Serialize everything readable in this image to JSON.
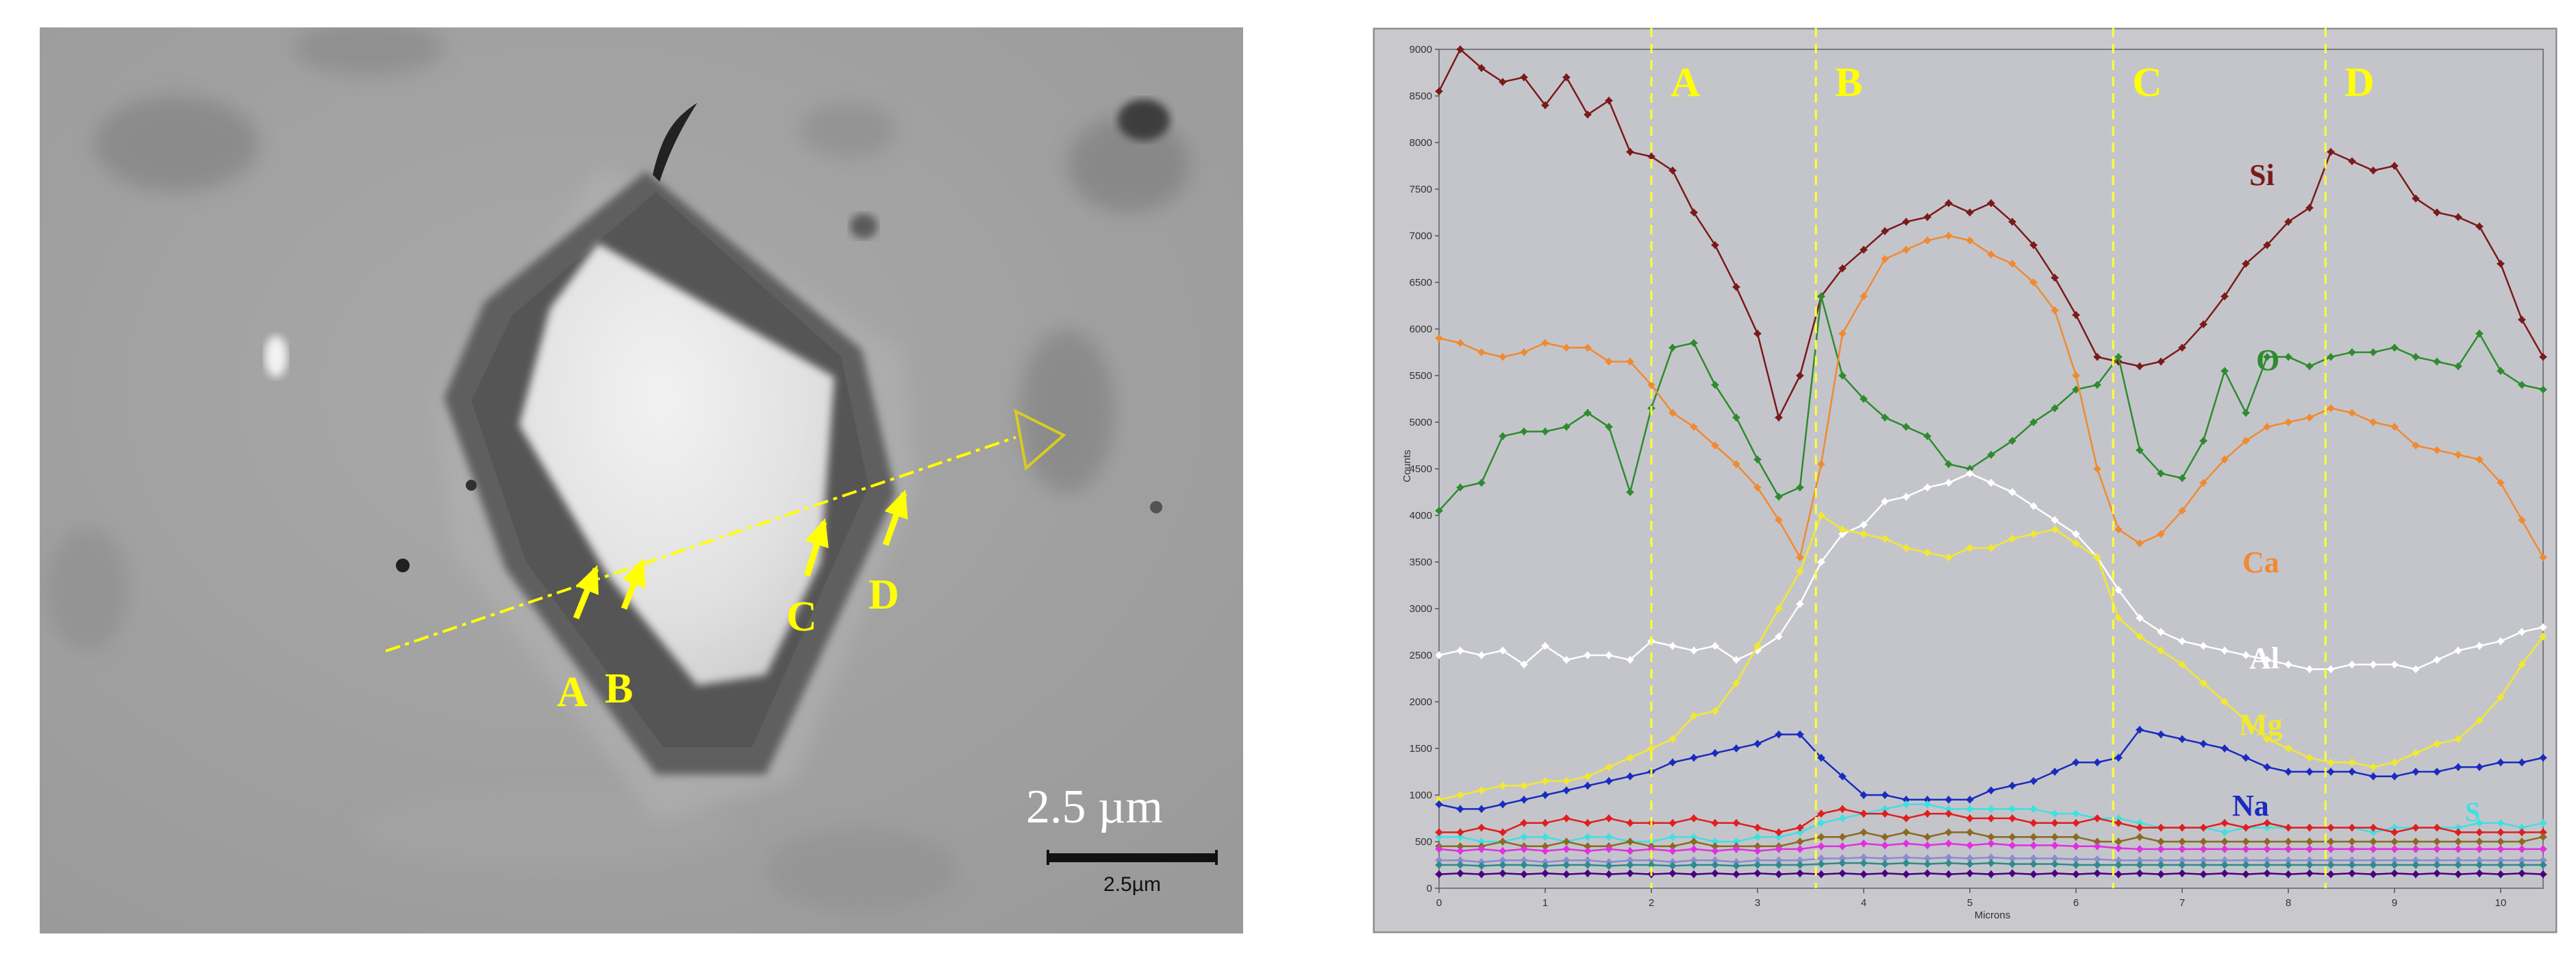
{
  "sem_image": {
    "markers": [
      {
        "label": "A",
        "color": "#ffff00"
      },
      {
        "label": "B",
        "color": "#ffff00"
      },
      {
        "label": "C",
        "color": "#ffff00"
      },
      {
        "label": "D",
        "color": "#ffff00"
      }
    ],
    "scale_text": "2.5 µm",
    "scalebar_label": "2.5µm"
  },
  "chart_data": {
    "type": "line",
    "title": "",
    "xlabel": "Microns",
    "ylabel": "Counts",
    "xlim": [
      0,
      10.4
    ],
    "ylim": [
      0,
      9000
    ],
    "xticks": [
      0,
      1,
      2,
      3,
      4,
      5,
      6,
      7,
      8,
      9,
      10
    ],
    "yticks": [
      0,
      500,
      1000,
      1500,
      2000,
      2500,
      3000,
      3500,
      4000,
      4500,
      5000,
      5500,
      6000,
      6500,
      7000,
      7500,
      8000,
      8500,
      9000
    ],
    "x": [
      0,
      0.2,
      0.4,
      0.6,
      0.8,
      1.0,
      1.2,
      1.4,
      1.6,
      1.8,
      2.0,
      2.2,
      2.4,
      2.6,
      2.8,
      3.0,
      3.2,
      3.4,
      3.6,
      3.8,
      4.0,
      4.2,
      4.4,
      4.6,
      4.8,
      5.0,
      5.2,
      5.4,
      5.6,
      5.8,
      6.0,
      6.2,
      6.4,
      6.6,
      6.8,
      7.0,
      7.2,
      7.4,
      7.6,
      7.8,
      8.0,
      8.2,
      8.4,
      8.6,
      8.8,
      9.0,
      9.2,
      9.4,
      9.6,
      9.8,
      10.0,
      10.2,
      10.4
    ],
    "boundaries": [
      {
        "label": "A",
        "x": 2.0
      },
      {
        "label": "B",
        "x": 3.55
      },
      {
        "label": "C",
        "x": 6.35
      },
      {
        "label": "D",
        "x": 8.35
      }
    ],
    "series": [
      {
        "name": "Si",
        "color": "#7b1a1a",
        "values": [
          8550,
          9000,
          8800,
          8650,
          8700,
          8400,
          8700,
          8300,
          8450,
          7900,
          7850,
          7700,
          7250,
          6900,
          6450,
          5950,
          5050,
          5500,
          6350,
          6650,
          6850,
          7050,
          7150,
          7200,
          7350,
          7250,
          7350,
          7150,
          6900,
          6550,
          6150,
          5700,
          5650,
          5600,
          5650,
          5800,
          6050,
          6350,
          6700,
          6900,
          7150,
          7300,
          7900,
          7800,
          7700,
          7750,
          7400,
          7250,
          7200,
          7100,
          6700,
          6100,
          5700
        ]
      },
      {
        "name": "O",
        "color": "#2e8b2e",
        "values": [
          4050,
          4300,
          4350,
          4850,
          4900,
          4900,
          4950,
          5100,
          4950,
          4250,
          5150,
          5800,
          5850,
          5400,
          5050,
          4600,
          4200,
          4300,
          6350,
          5500,
          5250,
          5050,
          4950,
          4850,
          4550,
          4500,
          4650,
          4800,
          5000,
          5150,
          5350,
          5400,
          5700,
          4700,
          4450,
          4400,
          4800,
          5550,
          5100,
          5700,
          5700,
          5600,
          5700,
          5750,
          5750,
          5800,
          5700,
          5650,
          5600,
          5950,
          5550,
          5400,
          5350
        ]
      },
      {
        "name": "Ca",
        "color": "#f08a30",
        "values": [
          5900,
          5850,
          5750,
          5700,
          5750,
          5850,
          5800,
          5800,
          5650,
          5650,
          5400,
          5100,
          4950,
          4750,
          4550,
          4300,
          3950,
          3550,
          4550,
          5950,
          6350,
          6750,
          6850,
          6950,
          7000,
          6950,
          6800,
          6700,
          6500,
          6200,
          5500,
          4500,
          3850,
          3700,
          3800,
          4050,
          4350,
          4600,
          4800,
          4950,
          5000,
          5050,
          5150,
          5100,
          5000,
          4950,
          4750,
          4700,
          4650,
          4600,
          4350,
          3950,
          3550
        ]
      },
      {
        "name": "Al",
        "color": "#ffffff",
        "values": [
          2500,
          2550,
          2500,
          2550,
          2400,
          2600,
          2450,
          2500,
          2500,
          2450,
          2650,
          2600,
          2550,
          2600,
          2450,
          2550,
          2700,
          3050,
          3500,
          3800,
          3900,
          4150,
          4200,
          4300,
          4350,
          4450,
          4350,
          4250,
          4100,
          3950,
          3800,
          3550,
          3200,
          2900,
          2750,
          2650,
          2600,
          2550,
          2500,
          2450,
          2400,
          2350,
          2350,
          2400,
          2400,
          2400,
          2350,
          2450,
          2550,
          2600,
          2650,
          2750,
          2800
        ]
      },
      {
        "name": "Mg",
        "color": "#f2e830",
        "values": [
          950,
          1000,
          1050,
          1100,
          1100,
          1150,
          1150,
          1200,
          1300,
          1400,
          1500,
          1600,
          1850,
          1900,
          2200,
          2600,
          3000,
          3400,
          4000,
          3850,
          3800,
          3750,
          3650,
          3600,
          3550,
          3650,
          3650,
          3750,
          3800,
          3850,
          3700,
          3550,
          2900,
          2700,
          2550,
          2400,
          2200,
          2000,
          1800,
          1600,
          1500,
          1400,
          1350,
          1350,
          1300,
          1350,
          1450,
          1550,
          1600,
          1800,
          2050,
          2400,
          2700
        ]
      },
      {
        "name": "Na",
        "color": "#1a2bbf",
        "values": [
          900,
          850,
          850,
          900,
          950,
          1000,
          1050,
          1100,
          1150,
          1200,
          1250,
          1350,
          1400,
          1450,
          1500,
          1550,
          1650,
          1650,
          1400,
          1200,
          1000,
          1000,
          950,
          950,
          950,
          950,
          1050,
          1100,
          1150,
          1250,
          1350,
          1350,
          1400,
          1700,
          1650,
          1600,
          1550,
          1500,
          1400,
          1300,
          1250,
          1250,
          1250,
          1250,
          1200,
          1200,
          1250,
          1250,
          1300,
          1300,
          1350,
          1350,
          1400
        ]
      },
      {
        "name": "S",
        "color": "#40e0e0",
        "values": [
          550,
          550,
          500,
          500,
          550,
          550,
          500,
          550,
          550,
          500,
          500,
          550,
          550,
          500,
          500,
          550,
          550,
          600,
          700,
          750,
          800,
          850,
          900,
          900,
          850,
          850,
          850,
          850,
          850,
          800,
          800,
          750,
          750,
          700,
          650,
          650,
          650,
          600,
          650,
          650,
          650,
          650,
          650,
          650,
          600,
          650,
          650,
          650,
          650,
          700,
          700,
          650,
          700
        ]
      },
      {
        "name": "",
        "color": "#e01e1e",
        "values": [
          600,
          600,
          650,
          600,
          700,
          700,
          750,
          700,
          750,
          700,
          700,
          700,
          750,
          700,
          700,
          650,
          600,
          650,
          800,
          850,
          800,
          800,
          750,
          800,
          800,
          750,
          750,
          750,
          700,
          700,
          700,
          750,
          700,
          650,
          650,
          650,
          650,
          700,
          650,
          700,
          650,
          650,
          650,
          650,
          650,
          600,
          650,
          650,
          600,
          600,
          600,
          600,
          600
        ]
      },
      {
        "name": "",
        "color": "#8b6a20",
        "values": [
          450,
          450,
          450,
          500,
          450,
          450,
          500,
          450,
          450,
          500,
          450,
          450,
          500,
          450,
          450,
          450,
          450,
          500,
          550,
          550,
          600,
          550,
          600,
          550,
          600,
          600,
          550,
          550,
          550,
          550,
          550,
          500,
          500,
          550,
          500,
          500,
          500,
          500,
          500,
          500,
          500,
          500,
          500,
          500,
          500,
          500,
          500,
          500,
          500,
          500,
          500,
          500,
          550
        ]
      },
      {
        "name": "",
        "color": "#e030e0",
        "values": [
          420,
          400,
          420,
          400,
          420,
          400,
          420,
          400,
          420,
          400,
          420,
          400,
          420,
          400,
          420,
          400,
          420,
          420,
          450,
          450,
          480,
          460,
          480,
          460,
          480,
          460,
          480,
          460,
          460,
          460,
          450,
          450,
          430,
          420,
          420,
          420,
          420,
          420,
          420,
          420,
          420,
          420,
          420,
          420,
          420,
          420,
          420,
          420,
          420,
          420,
          420,
          420,
          420
        ]
      },
      {
        "name": "",
        "color": "#8b8bd0",
        "values": [
          300,
          300,
          280,
          300,
          300,
          280,
          300,
          300,
          280,
          300,
          300,
          280,
          300,
          300,
          280,
          300,
          300,
          300,
          320,
          320,
          330,
          320,
          330,
          320,
          330,
          320,
          330,
          320,
          320,
          320,
          310,
          310,
          300,
          300,
          300,
          300,
          300,
          300,
          300,
          300,
          300,
          300,
          300,
          300,
          300,
          300,
          300,
          300,
          300,
          300,
          300,
          300,
          300
        ]
      },
      {
        "name": "",
        "color": "#2e8b8b",
        "values": [
          250,
          250,
          240,
          250,
          250,
          240,
          250,
          250,
          240,
          250,
          250,
          240,
          250,
          250,
          240,
          250,
          250,
          250,
          260,
          270,
          270,
          260,
          270,
          260,
          270,
          260,
          270,
          260,
          260,
          260,
          250,
          250,
          250,
          250,
          250,
          250,
          250,
          250,
          250,
          250,
          250,
          250,
          250,
          250,
          250,
          250,
          250,
          250,
          250,
          250,
          250,
          250,
          250
        ]
      },
      {
        "name": "",
        "color": "#4b0082",
        "values": [
          150,
          160,
          150,
          160,
          150,
          160,
          150,
          160,
          150,
          160,
          150,
          160,
          150,
          160,
          150,
          160,
          150,
          160,
          150,
          160,
          150,
          160,
          150,
          160,
          150,
          160,
          150,
          160,
          150,
          160,
          150,
          160,
          150,
          160,
          150,
          160,
          150,
          160,
          150,
          160,
          150,
          160,
          150,
          160,
          150,
          160,
          150,
          160,
          150,
          160,
          150,
          160,
          150
        ]
      }
    ]
  }
}
